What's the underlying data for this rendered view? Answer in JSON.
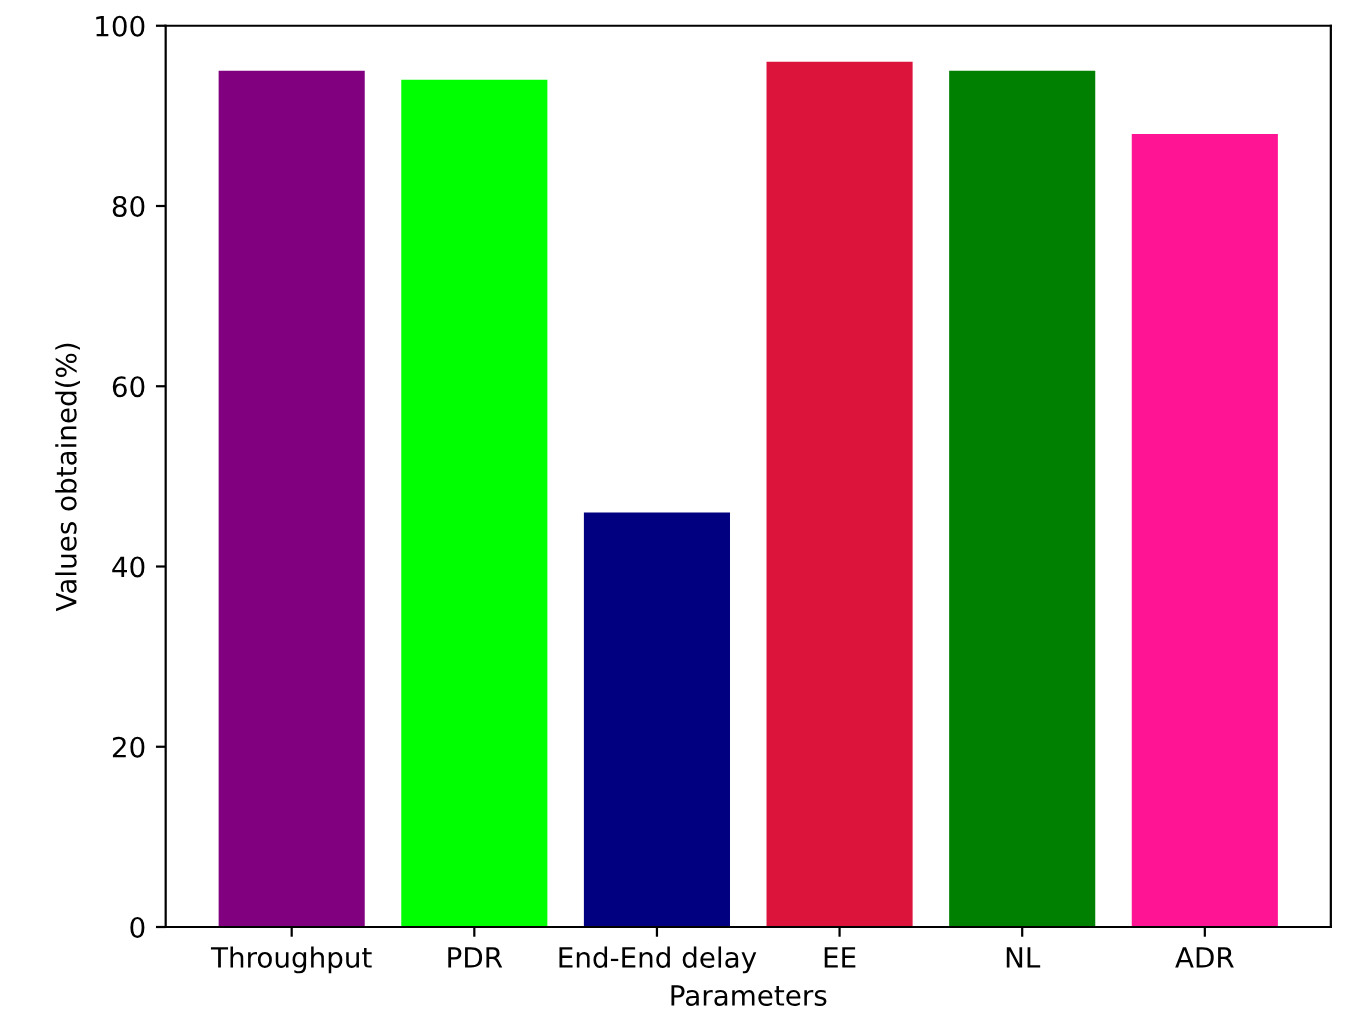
{
  "chart_data": {
    "type": "bar",
    "xlabel": "Parameters",
    "ylabel": "Values obtained(%)",
    "categories": [
      "Throughput",
      "PDR",
      "End-End delay",
      "EE",
      "NL",
      "ADR"
    ],
    "values": [
      95,
      94,
      46,
      96,
      95,
      88
    ],
    "colors": [
      "#800080",
      "#00ff00",
      "#000080",
      "#dc143c",
      "#008000",
      "#ff1493"
    ],
    "ylim": [
      0,
      100
    ],
    "yticks": [
      0,
      20,
      40,
      60,
      80,
      100
    ],
    "grid": false
  }
}
